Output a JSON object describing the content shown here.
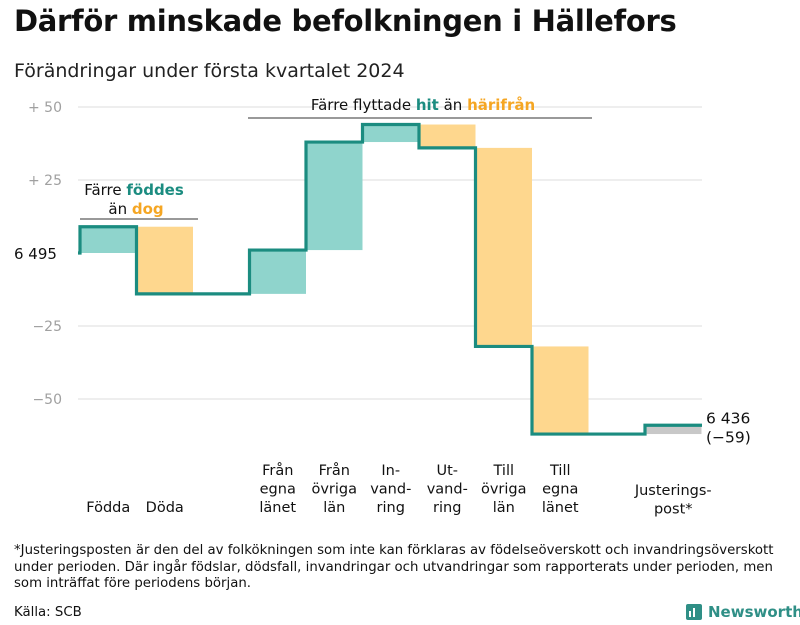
{
  "title": "Därför minskade befolkningen i Hällefors",
  "subtitle": "Förändringar under första kvartalet 2024",
  "chart_data": {
    "type": "bar",
    "subtype": "waterfall",
    "start_label": "6 495",
    "start_value": 6495,
    "end_label_value": "6 436",
    "end_label_change": "(−59)",
    "end_value": 6436,
    "y_tick_labels": [
      "+  50",
      "+  25",
      "−25",
      "−50"
    ],
    "y_tick_values": [
      50,
      25,
      -25,
      -50
    ],
    "ylim": [
      -60,
      52
    ],
    "grid": true,
    "steps": [
      {
        "label": [
          "Födda"
        ],
        "delta": 9,
        "color": "#8fd4cc"
      },
      {
        "label": [
          "Döda"
        ],
        "delta": -23,
        "color": "#fed78e"
      },
      {
        "label": [
          "Från",
          "egna",
          "länet"
        ],
        "delta": 15,
        "color": "#8fd4cc"
      },
      {
        "label": [
          "Från",
          "övriga",
          "län"
        ],
        "delta": 37,
        "color": "#8fd4cc"
      },
      {
        "label": [
          "In-",
          "vand-",
          "ring"
        ],
        "delta": 6,
        "color": "#8fd4cc"
      },
      {
        "label": [
          "Ut-",
          "vand-",
          "ring"
        ],
        "delta": -8,
        "color": "#fed78e"
      },
      {
        "label": [
          "Till",
          "övriga",
          "län"
        ],
        "delta": -68,
        "color": "#fed78e"
      },
      {
        "label": [
          "Till",
          "egna",
          "länet"
        ],
        "delta": -30,
        "color": "#fed78e"
      },
      {
        "label": [
          "Justerings-",
          "post*"
        ],
        "delta": 3,
        "color": "#c8c8c8"
      }
    ],
    "annotations": [
      {
        "parts": [
          {
            "text": "Färre ",
            "style": "normal"
          },
          {
            "text": "föddes",
            "style": "teal"
          }
        ],
        "line2": [
          {
            "text": "än ",
            "style": "normal"
          },
          {
            "text": "dog",
            "style": "orange"
          }
        ]
      },
      {
        "parts": [
          {
            "text": "Färre flyttade ",
            "style": "normal"
          },
          {
            "text": "hit",
            "style": "teal"
          },
          {
            "text": " än ",
            "style": "normal"
          },
          {
            "text": "härifrån",
            "style": "orange"
          }
        ]
      }
    ],
    "colors": {
      "line": "#1b8c80",
      "teal_text": "#1b8c80",
      "orange_text": "#f5a623",
      "grid": "#dddddd",
      "tick_text": "#a0a0a0"
    }
  },
  "footnote": "*Justeringsposten är den del av folkökningen som inte kan förklaras av födelseöverskott och invandringsöverskott under perioden. Där ingår födslar, dödsfall, invandringar och utvandringar som rapporterats under perioden, men som inträffat före periodens början.",
  "source": "Källa: SCB",
  "logo": {
    "text": "Newsworthy",
    "icon": "bar-chart-logo-icon"
  }
}
